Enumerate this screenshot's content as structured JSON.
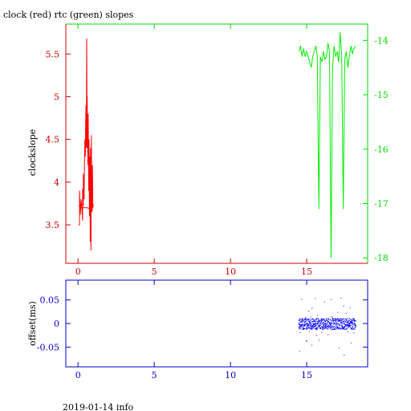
{
  "footer": "2019-01-14 info",
  "chart_data": [
    {
      "type": "line",
      "title": "clock (red) rtc (green) slopes",
      "ylabel": "clockslope",
      "xlim": [
        -0.8,
        19.0
      ],
      "ylim_left": [
        3.05,
        5.85
      ],
      "ylim_right": [
        -18.1,
        -13.7
      ],
      "x_ticks": [
        0,
        5,
        10,
        15
      ],
      "y_ticks_left": [
        3.5,
        4,
        4.5,
        5,
        5.5
      ],
      "y_ticks_right": [
        -14,
        -15,
        -16,
        -17,
        -18
      ],
      "grid": false,
      "colors": {
        "axis_left": "#cc0000",
        "axis_right": "#00dd00",
        "frame": "#0000cc"
      },
      "series": [
        {
          "name": "clock",
          "color": "#ff0000",
          "axis": "left",
          "x": [
            0.05,
            0.1,
            0.1,
            0.15,
            0.2,
            0.25,
            0.3,
            0.3,
            0.35,
            0.35,
            0.4,
            0.42,
            0.45,
            0.48,
            0.5,
            0.52,
            0.55,
            0.57,
            0.6,
            0.6,
            0.62,
            0.65,
            0.67,
            0.7,
            0.72,
            0.75,
            0.78,
            0.8,
            0.82,
            0.85,
            0.88,
            0.9,
            0.93,
            0.95,
            0.97,
            1.0,
            0.9,
            0.6,
            0.3,
            0.05
          ],
          "y": [
            3.5,
            3.5,
            3.9,
            3.62,
            3.8,
            3.7,
            3.55,
            3.92,
            3.72,
            4.1,
            3.8,
            4.2,
            4.5,
            4.3,
            4.7,
            4.9,
            4.4,
            5.68,
            4.4,
            5.0,
            4.6,
            4.2,
            4.8,
            3.9,
            4.5,
            3.6,
            4.3,
            3.3,
            4.4,
            3.2,
            4.55,
            3.7,
            3.65,
            4.2,
            3.75,
            3.72,
            3.68,
            3.7,
            3.7,
            3.72
          ]
        },
        {
          "name": "rtc",
          "color": "#00ee00",
          "axis": "right",
          "x": [
            14.5,
            14.6,
            14.7,
            14.8,
            14.9,
            15.0,
            15.1,
            15.2,
            15.3,
            15.4,
            15.5,
            15.6,
            15.7,
            15.8,
            15.9,
            16.0,
            16.1,
            16.2,
            16.3,
            16.4,
            16.5,
            16.6,
            16.7,
            16.8,
            16.9,
            17.0,
            17.1,
            17.2,
            17.3,
            17.4,
            17.5,
            17.6,
            17.7,
            17.8,
            17.9,
            18.0,
            18.1,
            18.2
          ],
          "y": [
            -14.2,
            -14.1,
            -14.3,
            -14.15,
            -14.3,
            -14.2,
            -14.3,
            -14.4,
            -14.5,
            -14.3,
            -14.2,
            -14.1,
            -14.3,
            -17.1,
            -14.3,
            -14.4,
            -14.2,
            -14.35,
            -14.3,
            -14.05,
            -14.2,
            -18.0,
            -14.5,
            -14.1,
            -14.3,
            -14.2,
            -14.4,
            -13.85,
            -14.3,
            -17.1,
            -14.35,
            -14.2,
            -14.5,
            -14.3,
            -14.1,
            -14.25,
            -14.15,
            -14.1
          ]
        }
      ]
    },
    {
      "type": "scatter",
      "title": "",
      "ylabel": "offset(ms)",
      "xlim": [
        -0.8,
        19.0
      ],
      "ylim": [
        -0.092,
        0.092
      ],
      "x_ticks": [
        0,
        5,
        10,
        15
      ],
      "y_ticks": [
        0.05,
        0,
        -0.05
      ],
      "y_tick_labels": [
        "0.05",
        "0",
        "-0.05"
      ],
      "grid": false,
      "colors": {
        "points": "#0000ff",
        "axis": "#0000cc"
      },
      "point_range": {
        "x_from": 14.45,
        "x_to": 18.2,
        "typical_spread": 0.012,
        "max_spread": 0.078
      }
    }
  ]
}
